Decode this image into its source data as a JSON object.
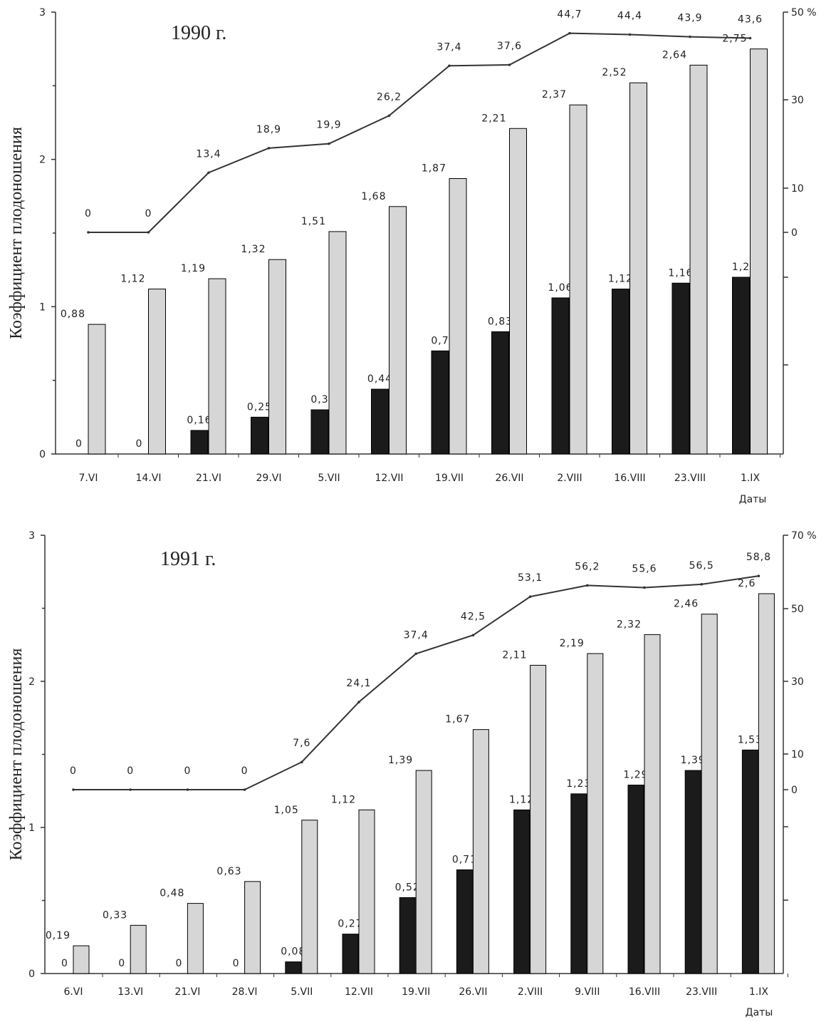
{
  "colors": {
    "light_bar": "#d6d6d6",
    "dark_bar": "#1b1b1b",
    "line": "#333333",
    "axis": "#333333"
  },
  "chart_data": [
    {
      "type": "bar",
      "title": "1990 г.",
      "ylabel": "Коэффициент плодоношения",
      "xlabel": "Даты",
      "ylim": [
        0,
        3
      ],
      "left_ticks": [
        "0",
        "1",
        "2",
        "3"
      ],
      "right_ticks": [
        "0",
        "10",
        "30",
        "50 %"
      ],
      "categories": [
        "7.VI",
        "14.VI",
        "21.VI",
        "29.VI",
        "5.VII",
        "12.VII",
        "19.VII",
        "26.VII",
        "2.VIII",
        "16.VIII",
        "23.VIII",
        "1.IX"
      ],
      "series": [
        {
          "values": [
            0,
            0,
            0.16,
            0.25,
            0.3,
            0.44,
            0.7,
            0.83,
            1.06,
            1.12,
            1.16,
            1.2
          ],
          "labels": [
            "0",
            "0",
            "0,16",
            "0,25",
            "0,3",
            "0,44",
            "0,7",
            "0,83",
            "1,06",
            "1,12",
            "1,16",
            "1,2"
          ]
        },
        {
          "values": [
            0.88,
            1.12,
            1.19,
            1.32,
            1.51,
            1.68,
            1.87,
            2.21,
            2.37,
            2.52,
            2.64,
            2.75
          ],
          "labels": [
            "0,88",
            "1,12",
            "1,19",
            "1,32",
            "1,51",
            "1,68",
            "1,87",
            "2,21",
            "2,37",
            "2,52",
            "2,64",
            "2,75"
          ]
        },
        {
          "values": [
            0,
            0,
            13.4,
            18.9,
            19.9,
            26.2,
            37.4,
            37.6,
            44.7,
            44.4,
            43.9,
            43.6
          ],
          "labels": [
            "0",
            "0",
            "13,4",
            "18,9",
            "19,9",
            "26,2",
            "37,4",
            "37,6",
            "44,7",
            "44,4",
            "43,9",
            "43,6"
          ]
        }
      ]
    },
    {
      "type": "bar",
      "title": "1991 г.",
      "ylabel": "Коэффициент плодоношения",
      "xlabel": "Даты",
      "ylim": [
        0,
        3
      ],
      "left_ticks": [
        "0",
        "1",
        "2",
        "3"
      ],
      "right_ticks": [
        "0",
        "10",
        "30",
        "50",
        "70 %"
      ],
      "categories": [
        "6.VI",
        "13.VI",
        "21.VI",
        "28.VI",
        "5.VII",
        "12.VII",
        "19.VII",
        "26.VII",
        "2.VIII",
        "9.VIII",
        "16.VIII",
        "23.VIII",
        "1.IX"
      ],
      "series": [
        {
          "values": [
            0,
            0,
            0,
            0,
            0.08,
            0.27,
            0.52,
            0.71,
            1.12,
            1.23,
            1.29,
            1.39,
            1.53
          ],
          "labels": [
            "0",
            "0",
            "0",
            "0",
            "0,08",
            "0,27",
            "0,52",
            "0,71",
            "1,12",
            "1,23",
            "1,29",
            "1,39",
            "1,53"
          ]
        },
        {
          "values": [
            0.19,
            0.33,
            0.48,
            0.63,
            1.05,
            1.12,
            1.39,
            1.67,
            2.11,
            2.19,
            2.32,
            2.46,
            2.6
          ],
          "labels": [
            "0,19",
            "0,33",
            "0,48",
            "0,63",
            "1,05",
            "1,12",
            "1,39",
            "1,67",
            "2,11",
            "2,19",
            "2,32",
            "2,46",
            "2,6"
          ]
        },
        {
          "values": [
            0,
            0,
            0,
            0,
            7.6,
            24.1,
            37.4,
            42.5,
            53.1,
            56.2,
            55.6,
            56.5,
            58.8
          ],
          "labels": [
            "0",
            "0",
            "0",
            "0",
            "7,6",
            "24,1",
            "37,4",
            "42,5",
            "53,1",
            "56,2",
            "55,6",
            "56,5",
            "58,8"
          ]
        }
      ]
    }
  ]
}
